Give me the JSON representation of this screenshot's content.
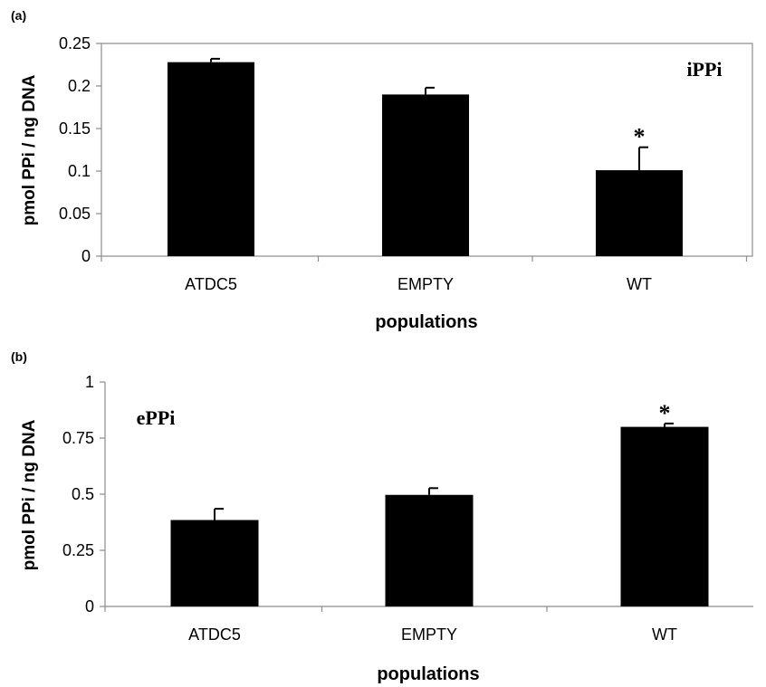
{
  "chart_data": [
    {
      "panel_tag": "(a)",
      "type": "bar",
      "categories": [
        "ATDC5",
        "EMPTY",
        "WT"
      ],
      "series": [
        {
          "values": [
            0.228,
            0.19,
            0.101
          ],
          "errors": [
            0.004,
            0.008,
            0.027
          ]
        }
      ],
      "annotation": "iPPi",
      "significance": [
        "",
        "",
        "*"
      ],
      "xlabel": "populations",
      "ylabel": "pmol PPi / ng DNA",
      "ylim": [
        0,
        0.25
      ],
      "yticks": [
        0,
        0.05,
        0.1,
        0.15,
        0.2,
        0.25
      ],
      "ytick_labels": [
        "0",
        "0.05",
        "0.1",
        "0.15",
        "0.2",
        "0.25"
      ],
      "bar_color": "#000000",
      "plot_border": true,
      "grid": false
    },
    {
      "panel_tag": "(b)",
      "type": "bar",
      "categories": [
        "ATDC5",
        "EMPTY",
        "WT"
      ],
      "series": [
        {
          "values": [
            0.385,
            0.497,
            0.8
          ],
          "errors": [
            0.05,
            0.03,
            0.015
          ]
        }
      ],
      "annotation": "ePPi",
      "significance": [
        "",
        "",
        "*"
      ],
      "xlabel": "populations",
      "ylabel": "pmol PPi / ng DNA",
      "ylim": [
        0,
        1
      ],
      "yticks": [
        0,
        0.25,
        0.5,
        0.75,
        1
      ],
      "ytick_labels": [
        "0",
        "0.25",
        "0.5",
        "0.75",
        "1"
      ],
      "bar_color": "#000000",
      "plot_border": false,
      "grid": false
    }
  ]
}
